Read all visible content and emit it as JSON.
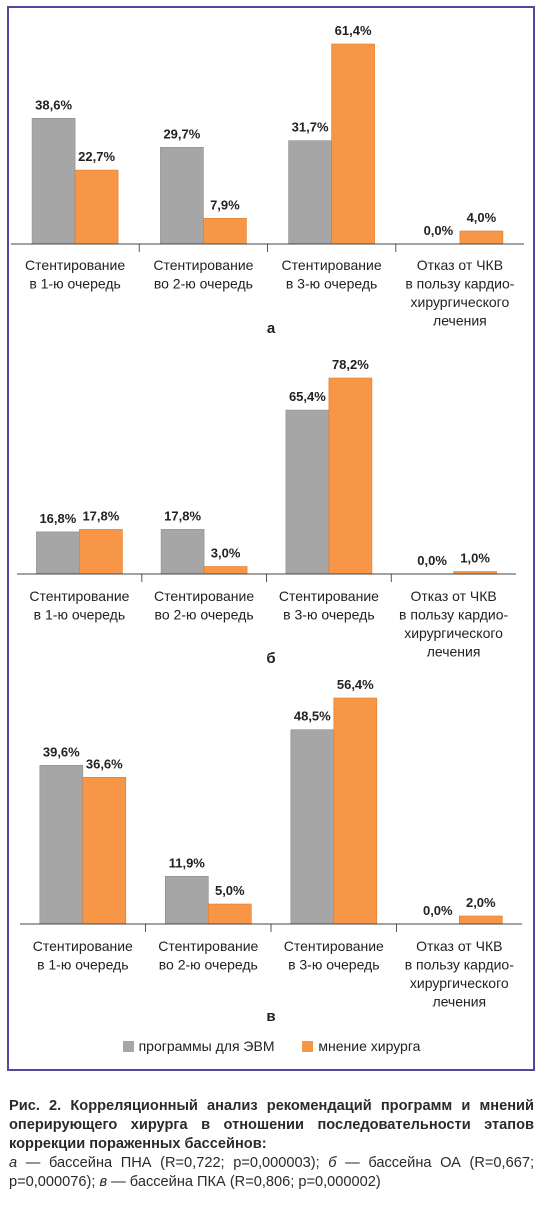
{
  "colors": {
    "series1": "#a6a6a6",
    "series2": "#f79646",
    "frame": "#55489a"
  },
  "legend": {
    "items": [
      "программы для ЭВМ",
      "мнение хирурга"
    ]
  },
  "chart_data": [
    {
      "type": "bar",
      "label": "а",
      "categories": [
        [
          "Стентирование",
          "в 1-ю очередь"
        ],
        [
          "Стентирование",
          "во 2-ю очередь"
        ],
        [
          "Стентирование",
          "в 3-ю очередь"
        ],
        [
          "Отказ от ЧКВ",
          "в пользу кардио-",
          "хирургического",
          "лечения"
        ]
      ],
      "series": [
        {
          "name": "программы для ЭВМ",
          "values": [
            38.6,
            29.7,
            31.7,
            0.0
          ],
          "labels": [
            "38,6%",
            "29,7%",
            "31,7%",
            "0,0%"
          ]
        },
        {
          "name": "мнение хирурга",
          "values": [
            22.7,
            7.9,
            61.4,
            4.0
          ],
          "labels": [
            "22,7%",
            "7,9%",
            "61,4%",
            "4,0%"
          ]
        }
      ],
      "ylim": [
        0,
        61.4
      ]
    },
    {
      "type": "bar",
      "label": "б",
      "categories": [
        [
          "Стентирование",
          "в 1-ю очередь"
        ],
        [
          "Стентирование",
          "во 2-ю очередь"
        ],
        [
          "Стентирование",
          "в 3-ю очередь"
        ],
        [
          "Отказ от ЧКВ",
          "в пользу кардио-",
          "хирургического",
          "лечения"
        ]
      ],
      "series": [
        {
          "name": "программы для ЭВМ",
          "values": [
            16.8,
            17.8,
            65.4,
            0.0
          ],
          "labels": [
            "16,8%",
            "17,8%",
            "65,4%",
            "0,0%"
          ]
        },
        {
          "name": "мнение хирурга",
          "values": [
            17.8,
            3.0,
            78.2,
            1.0
          ],
          "labels": [
            "17,8%",
            "3,0%",
            "78,2%",
            "1,0%"
          ]
        }
      ],
      "ylim": [
        0,
        78.2
      ]
    },
    {
      "type": "bar",
      "label": "в",
      "categories": [
        [
          "Стентирование",
          "в 1-ю очередь"
        ],
        [
          "Стентирование",
          "во 2-ю очередь"
        ],
        [
          "Стентирование",
          "в 3-ю очередь"
        ],
        [
          "Отказ от ЧКВ",
          "в пользу кардио-",
          "хирургического",
          "лечения"
        ]
      ],
      "series": [
        {
          "name": "программы для ЭВМ",
          "values": [
            39.6,
            11.9,
            48.5,
            0.0
          ],
          "labels": [
            "39,6%",
            "11,9%",
            "48,5%",
            "0,0%"
          ]
        },
        {
          "name": "мнение хирурга",
          "values": [
            36.6,
            5.0,
            56.4,
            2.0
          ],
          "labels": [
            "36,6%",
            "5,0%",
            "56,4%",
            "2,0%"
          ]
        }
      ],
      "ylim": [
        0,
        56.4
      ]
    }
  ],
  "caption": {
    "title": "Рис. 2. Корреляционный анализ рекомендаций программ и мнений оперирующего хирурга в отношении последователь­ности этапов коррекции пораженных бассейнов:",
    "a_letter": "а",
    "a_text": " — бассейна ПНА (R=0,722; p=0,000003); ",
    "b_letter": "б",
    "b_text": " — бассейна ОА (R=0,667; p=0,000076); ",
    "v_letter": "в",
    "v_text": " — бассейна ПКА (R=0,806; p=0,000002)"
  }
}
